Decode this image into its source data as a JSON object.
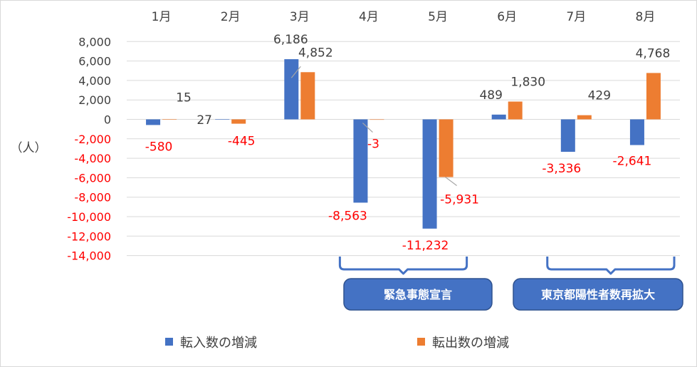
{
  "chart_data": {
    "type": "bar",
    "categories": [
      "1月",
      "2月",
      "3月",
      "4月",
      "5月",
      "6月",
      "7月",
      "8月"
    ],
    "series": [
      {
        "name": "転入数の増減",
        "values": [
          -580,
          27,
          6186,
          -8563,
          -11232,
          489,
          -3336,
          -2641
        ],
        "labels": [
          "-580",
          "27",
          "6,186",
          "-8,563",
          "-11,232",
          "489",
          "-3,336",
          "-2,641"
        ]
      },
      {
        "name": "転出数の増減",
        "values": [
          15,
          -445,
          4852,
          -3,
          -5931,
          1830,
          429,
          4768
        ],
        "labels": [
          "15",
          "-445",
          "4,852",
          "-3",
          "-5,931",
          "1,830",
          "429",
          "4,768"
        ]
      }
    ],
    "ylabel": "（人）",
    "ylim": [
      -14000,
      8000
    ],
    "yticks": [
      "8,000",
      "6,000",
      "4,000",
      "2,000",
      "0",
      "-2,000",
      "-4,000",
      "-6,000",
      "-8,000",
      "-10,000",
      "-12,000",
      "-14,000"
    ],
    "yticks_values": [
      8000,
      6000,
      4000,
      2000,
      0,
      -2000,
      -4000,
      -6000,
      -8000,
      -10000,
      -12000,
      -14000
    ],
    "grid": true,
    "legend_position": "bottom",
    "colors": {
      "series1": "#4472c4",
      "series2": "#ed7d31",
      "negative_label": "#ff0000",
      "text": "#404040",
      "callout": "#4472c4",
      "gridline": "#d9d9d9"
    },
    "annotations": [
      {
        "text": "緊急事態宣言",
        "from_category": "4月",
        "to_category": "5月"
      },
      {
        "text": "東京都陽性者数再拡大",
        "from_category": "7月",
        "to_category": "8月"
      }
    ]
  }
}
